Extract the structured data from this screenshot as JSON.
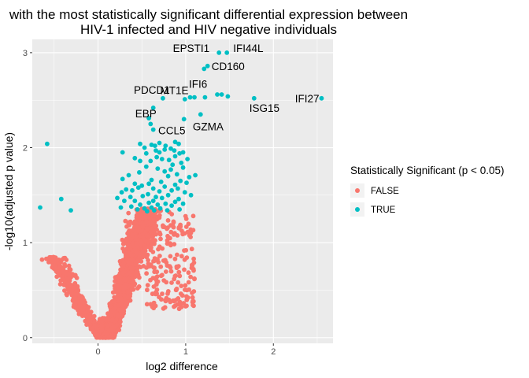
{
  "chart_data": {
    "type": "scatter",
    "title_lines": [
      "with the most statistically significant differential expression between",
      "HIV-1 infected and HIV negative individuals"
    ],
    "xlabel": "log2 difference",
    "ylabel": "-log10(adjusted p value)",
    "xlim": [
      -0.75,
      2.68
    ],
    "ylim": [
      -0.06,
      3.14
    ],
    "x_ticks": [
      0,
      1,
      2
    ],
    "y_ticks": [
      0,
      1,
      2,
      3
    ],
    "x_tick_labels": [
      "0",
      "1",
      "2"
    ],
    "y_tick_labels": [
      "0",
      "1",
      "2",
      "3"
    ],
    "grid": true,
    "legend": {
      "title": "Statistically Significant (p < 0.05)",
      "position": "right",
      "entries": [
        {
          "label": "FALSE",
          "color": "#F8766D"
        },
        {
          "label": "TRUE",
          "color": "#00BFC4"
        }
      ]
    },
    "colors": {
      "FALSE": "#F8766D",
      "TRUE": "#00BFC4",
      "panel": "#EBEBEB",
      "grid": "#FFFFFF"
    },
    "series": [
      {
        "name": "TRUE",
        "color": "#00BFC4",
        "points": [
          [
            1.38,
            3.0
          ],
          [
            1.47,
            3.0
          ],
          [
            1.21,
            2.83
          ],
          [
            1.25,
            2.86
          ],
          [
            1.05,
            2.53
          ],
          [
            1.1,
            2.53
          ],
          [
            1.22,
            2.53
          ],
          [
            1.36,
            2.56
          ],
          [
            1.41,
            2.56
          ],
          [
            1.48,
            2.54
          ],
          [
            1.78,
            2.52
          ],
          [
            2.55,
            2.52
          ],
          [
            0.74,
            2.52
          ],
          [
            0.99,
            2.51
          ],
          [
            0.63,
            2.42
          ],
          [
            0.58,
            2.31
          ],
          [
            0.6,
            2.25
          ],
          [
            0.63,
            2.19
          ],
          [
            0.98,
            2.3
          ],
          [
            1.17,
            2.35
          ],
          [
            0.92,
            2.04
          ],
          [
            0.88,
            2.06
          ],
          [
            0.48,
            2.04
          ],
          [
            0.53,
            2.0
          ],
          [
            0.61,
            2.03
          ],
          [
            0.65,
            2.02
          ],
          [
            0.7,
            2.05
          ],
          [
            0.77,
            2.02
          ],
          [
            0.28,
            1.95
          ],
          [
            0.55,
            1.94
          ],
          [
            0.66,
            1.97
          ],
          [
            0.7,
            1.95
          ],
          [
            0.76,
            1.98
          ],
          [
            0.83,
            1.99
          ],
          [
            0.87,
            1.97
          ],
          [
            0.93,
            1.94
          ],
          [
            0.97,
            1.95
          ],
          [
            0.42,
            1.89
          ],
          [
            0.48,
            1.86
          ],
          [
            0.6,
            1.86
          ],
          [
            0.67,
            1.9
          ],
          [
            0.73,
            1.88
          ],
          [
            0.81,
            1.87
          ],
          [
            0.88,
            1.91
          ],
          [
            0.95,
            1.84
          ],
          [
            1.02,
            1.88
          ],
          [
            0.85,
            1.82
          ],
          [
            0.55,
            1.8
          ],
          [
            0.68,
            1.78
          ],
          [
            0.76,
            1.75
          ],
          [
            0.83,
            1.77
          ],
          [
            0.9,
            1.72
          ],
          [
            0.97,
            1.79
          ],
          [
            0.47,
            1.74
          ],
          [
            0.35,
            1.71
          ],
          [
            0.8,
            1.7
          ],
          [
            1.04,
            1.69
          ],
          [
            1.11,
            1.71
          ],
          [
            0.61,
            1.66
          ],
          [
            0.28,
            1.67
          ],
          [
            0.42,
            1.62
          ],
          [
            0.5,
            1.6
          ],
          [
            0.58,
            1.62
          ],
          [
            0.72,
            1.64
          ],
          [
            0.88,
            1.61
          ],
          [
            0.94,
            1.65
          ],
          [
            1.01,
            1.63
          ],
          [
            0.32,
            1.56
          ],
          [
            0.39,
            1.55
          ],
          [
            0.46,
            1.58
          ],
          [
            0.63,
            1.57
          ],
          [
            0.7,
            1.54
          ],
          [
            0.76,
            1.59
          ],
          [
            0.84,
            1.55
          ],
          [
            0.91,
            1.57
          ],
          [
            0.99,
            1.53
          ],
          [
            0.27,
            1.53
          ],
          [
            0.37,
            1.48
          ],
          [
            0.51,
            1.49
          ],
          [
            0.57,
            1.51
          ],
          [
            0.66,
            1.48
          ],
          [
            0.73,
            1.47
          ],
          [
            0.8,
            1.5
          ],
          [
            0.92,
            1.46
          ],
          [
            1.06,
            1.5
          ],
          [
            0.22,
            1.47
          ],
          [
            0.3,
            1.44
          ],
          [
            0.42,
            1.44
          ],
          [
            0.48,
            1.4
          ],
          [
            0.58,
            1.42
          ],
          [
            0.63,
            1.44
          ],
          [
            0.68,
            1.4
          ],
          [
            0.77,
            1.41
          ],
          [
            0.84,
            1.39
          ],
          [
            0.88,
            1.43
          ],
          [
            0.97,
            1.41
          ],
          [
            0.26,
            1.37
          ],
          [
            0.38,
            1.38
          ],
          [
            0.45,
            1.35
          ],
          [
            0.53,
            1.36
          ],
          [
            0.61,
            1.37
          ],
          [
            0.71,
            1.36
          ],
          [
            0.93,
            1.35
          ],
          [
            0.56,
            1.33
          ],
          [
            0.64,
            1.34
          ],
          [
            0.79,
            1.34
          ],
          [
            -0.58,
            2.04
          ],
          [
            -0.42,
            1.46
          ],
          [
            -0.66,
            1.37
          ],
          [
            -0.31,
            1.34
          ]
        ]
      }
    ],
    "gene_labels": [
      {
        "text": "EPSTI1",
        "x": 1.38,
        "y": 3.0
      },
      {
        "text": "IFI44L",
        "x": 1.47,
        "y": 3.0
      },
      {
        "text": "CD160",
        "x": 1.25,
        "y": 2.86
      },
      {
        "text": "IFI6",
        "x": 1.1,
        "y": 2.53
      },
      {
        "text": "MT1E",
        "x": 1.05,
        "y": 2.53
      },
      {
        "text": "PDCD1",
        "x": 0.74,
        "y": 2.52
      },
      {
        "text": "IFI27",
        "x": 2.55,
        "y": 2.52
      },
      {
        "text": "ISG15",
        "x": 1.78,
        "y": 2.52
      },
      {
        "text": "EBP",
        "x": 0.63,
        "y": 2.42
      },
      {
        "text": "GZMA",
        "x": 1.17,
        "y": 2.35
      },
      {
        "text": "CCL5",
        "x": 0.92,
        "y": 2.04
      }
    ]
  }
}
